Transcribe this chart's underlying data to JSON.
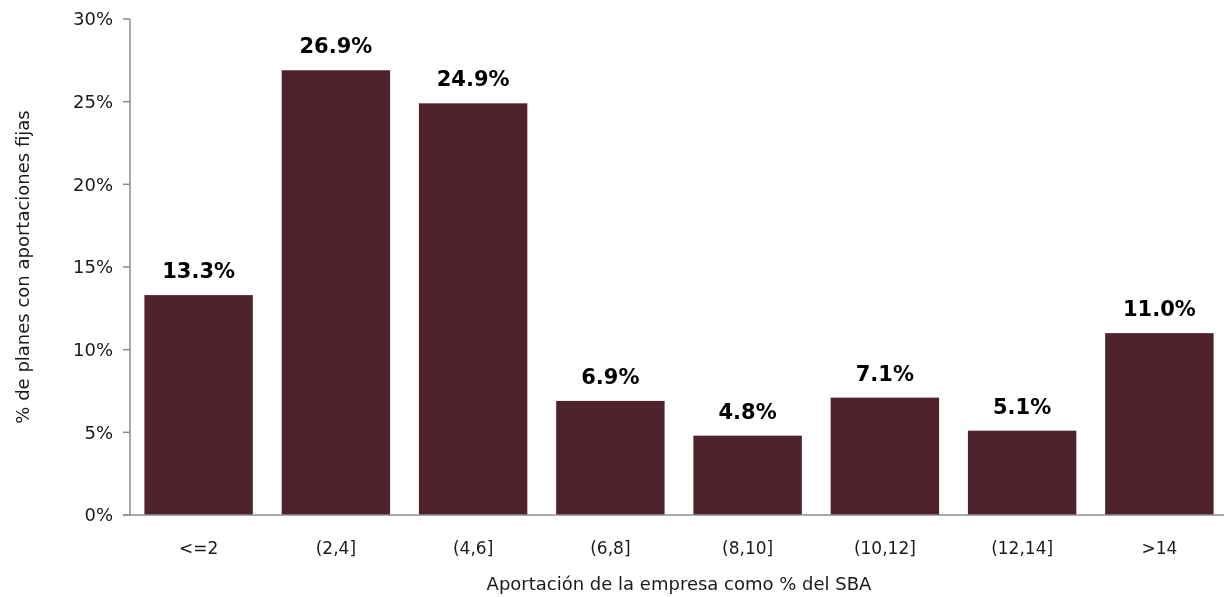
{
  "chart_data": {
    "type": "bar",
    "xlabel": "Aportación de la empresa como % del SBA",
    "ylabel": "% de planes con aportaciones fijas",
    "categories": [
      "<=2",
      "(2,4]",
      "(4,6]",
      "(6,8]",
      "(8,10]",
      "(10,12]",
      "(12,14]",
      ">14"
    ],
    "values": [
      13.3,
      26.9,
      24.9,
      6.9,
      4.8,
      7.1,
      5.1,
      11.0
    ],
    "value_labels": [
      "13.3%",
      "26.9%",
      "24.9%",
      "6.9%",
      "4.8%",
      "7.1%",
      "5.1%",
      "11.0%"
    ],
    "color": "#4e232e",
    "ylim": [
      0,
      30
    ],
    "yticks": [
      {
        "value": 0,
        "label": "0%"
      },
      {
        "value": 5,
        "label": "5%"
      },
      {
        "value": 10,
        "label": "10%"
      },
      {
        "value": 15,
        "label": "15%"
      },
      {
        "value": 20,
        "label": "20%"
      },
      {
        "value": 25,
        "label": "25%"
      },
      {
        "value": 30,
        "label": "30%"
      }
    ],
    "grid": false
  }
}
